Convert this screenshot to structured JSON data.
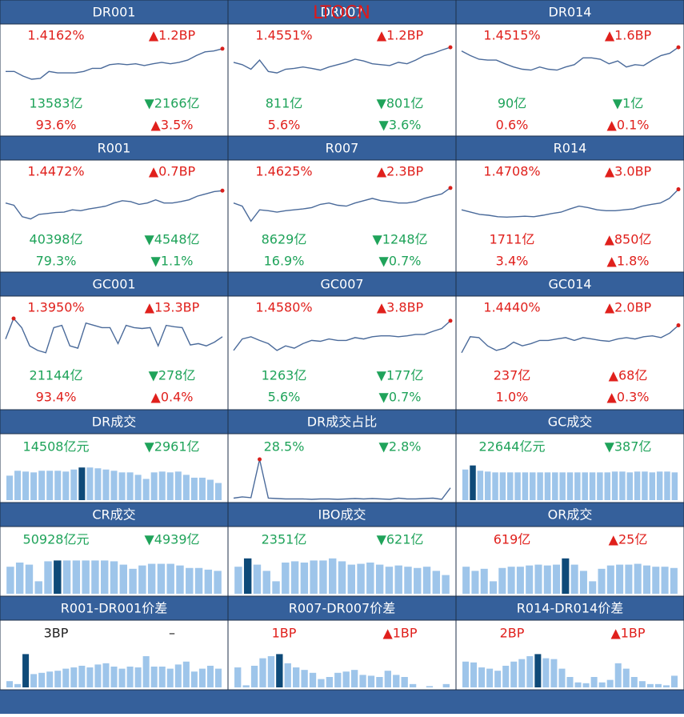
{
  "overlay_text": "LTOCN",
  "chart_data": [
    {
      "type": "line",
      "title": "DR001",
      "ylim": [
        0,
        100
      ],
      "color": "#4a6a9a",
      "marker_color": "#d9201c",
      "highlight_index": 25,
      "values": [
        45,
        45,
        35,
        28,
        30,
        45,
        42,
        42,
        42,
        45,
        52,
        52,
        60,
        62,
        60,
        62,
        58,
        62,
        65,
        62,
        65,
        70,
        80,
        88,
        90,
        95
      ],
      "stats": [
        {
          "text": "1.4162%",
          "color": "#e0201c"
        },
        {
          "text": "▲1.2BP",
          "color": "#e0201c"
        },
        {
          "text": "13583亿",
          "color": "#1fa35a"
        },
        {
          "text": "▼2166亿",
          "color": "#1fa35a"
        },
        {
          "text": "93.6%",
          "color": "#e0201c"
        },
        {
          "text": "▲3.5%",
          "color": "#e0201c"
        }
      ]
    },
    {
      "type": "line",
      "title": "DR007",
      "ylim": [
        0,
        100
      ],
      "color": "#4a6a9a",
      "marker_color": "#d9201c",
      "highlight_index": 25,
      "values": [
        65,
        60,
        50,
        70,
        45,
        42,
        50,
        52,
        55,
        52,
        48,
        55,
        60,
        65,
        72,
        68,
        62,
        60,
        58,
        65,
        62,
        70,
        80,
        85,
        92,
        98
      ],
      "stats": [
        {
          "text": "1.4551%",
          "color": "#e0201c"
        },
        {
          "text": "▲1.2BP",
          "color": "#e0201c"
        },
        {
          "text": "811亿",
          "color": "#1fa35a"
        },
        {
          "text": "▼801亿",
          "color": "#1fa35a"
        },
        {
          "text": "5.6%",
          "color": "#e0201c"
        },
        {
          "text": "▼3.6%",
          "color": "#1fa35a"
        }
      ]
    },
    {
      "type": "line",
      "title": "DR014",
      "ylim": [
        0,
        100
      ],
      "color": "#4a6a9a",
      "marker_color": "#d9201c",
      "highlight_index": 25,
      "values": [
        90,
        80,
        72,
        70,
        70,
        62,
        55,
        50,
        48,
        55,
        50,
        48,
        55,
        60,
        75,
        75,
        72,
        62,
        68,
        55,
        60,
        58,
        70,
        80,
        85,
        98
      ],
      "stats": [
        {
          "text": "1.4515%",
          "color": "#e0201c"
        },
        {
          "text": "▲1.6BP",
          "color": "#e0201c"
        },
        {
          "text": "90亿",
          "color": "#1fa35a"
        },
        {
          "text": "▼1亿",
          "color": "#1fa35a"
        },
        {
          "text": "0.6%",
          "color": "#e0201c"
        },
        {
          "text": "▲0.1%",
          "color": "#e0201c"
        }
      ]
    },
    {
      "type": "line",
      "title": "R001",
      "ylim": [
        0,
        100
      ],
      "color": "#4a6a9a",
      "marker_color": "#d9201c",
      "highlight_index": 26,
      "values": [
        55,
        50,
        25,
        20,
        30,
        32,
        34,
        35,
        40,
        38,
        42,
        45,
        48,
        55,
        60,
        58,
        52,
        55,
        62,
        55,
        55,
        58,
        62,
        70,
        75,
        80,
        82
      ],
      "stats": [
        {
          "text": "1.4472%",
          "color": "#e0201c"
        },
        {
          "text": "▲0.7BP",
          "color": "#e0201c"
        },
        {
          "text": "40398亿",
          "color": "#1fa35a"
        },
        {
          "text": "▼4548亿",
          "color": "#1fa35a"
        },
        {
          "text": "79.3%",
          "color": "#1fa35a"
        },
        {
          "text": "▼1.1%",
          "color": "#1fa35a"
        }
      ]
    },
    {
      "type": "line",
      "title": "R007",
      "ylim": [
        0,
        100
      ],
      "color": "#4a6a9a",
      "marker_color": "#d9201c",
      "highlight_index": 25,
      "values": [
        55,
        48,
        15,
        40,
        38,
        35,
        38,
        40,
        42,
        45,
        52,
        55,
        50,
        48,
        55,
        60,
        65,
        60,
        58,
        55,
        55,
        58,
        65,
        70,
        75,
        88
      ],
      "stats": [
        {
          "text": "1.4625%",
          "color": "#e0201c"
        },
        {
          "text": "▲2.3BP",
          "color": "#e0201c"
        },
        {
          "text": "8629亿",
          "color": "#1fa35a"
        },
        {
          "text": "▼1248亿",
          "color": "#1fa35a"
        },
        {
          "text": "16.9%",
          "color": "#1fa35a"
        },
        {
          "text": "▼0.7%",
          "color": "#1fa35a"
        }
      ]
    },
    {
      "type": "line",
      "title": "R014",
      "ylim": [
        0,
        100
      ],
      "color": "#4a6a9a",
      "marker_color": "#d9201c",
      "highlight_index": 24,
      "values": [
        40,
        35,
        30,
        28,
        25,
        24,
        25,
        26,
        25,
        28,
        32,
        35,
        42,
        48,
        45,
        40,
        38,
        38,
        40,
        42,
        48,
        52,
        55,
        65,
        85
      ],
      "stats": [
        {
          "text": "1.4708%",
          "color": "#e0201c"
        },
        {
          "text": "▲3.0BP",
          "color": "#e0201c"
        },
        {
          "text": "1711亿",
          "color": "#e0201c"
        },
        {
          "text": "▲850亿",
          "color": "#e0201c"
        },
        {
          "text": "3.4%",
          "color": "#e0201c"
        },
        {
          "text": "▲1.8%",
          "color": "#e0201c"
        }
      ]
    },
    {
      "type": "line",
      "title": "GC001",
      "ylim": [
        0,
        100
      ],
      "color": "#4a6a9a",
      "marker_color": "#d9201c",
      "highlight_index": 1,
      "values": [
        55,
        100,
        80,
        40,
        30,
        25,
        80,
        85,
        40,
        35,
        90,
        85,
        80,
        80,
        45,
        85,
        80,
        78,
        80,
        40,
        85,
        82,
        80,
        42,
        45,
        40,
        48,
        60
      ],
      "stats": [
        {
          "text": "1.3950%",
          "color": "#e0201c"
        },
        {
          "text": "▲13.3BP",
          "color": "#e0201c"
        },
        {
          "text": "21144亿",
          "color": "#1fa35a"
        },
        {
          "text": "▼278亿",
          "color": "#1fa35a"
        },
        {
          "text": "93.4%",
          "color": "#e0201c"
        },
        {
          "text": "▲0.4%",
          "color": "#e0201c"
        }
      ]
    },
    {
      "type": "line",
      "title": "GC007",
      "ylim": [
        0,
        100
      ],
      "color": "#4a6a9a",
      "marker_color": "#d9201c",
      "highlight_index": 25,
      "values": [
        30,
        55,
        60,
        52,
        45,
        30,
        40,
        35,
        45,
        52,
        50,
        55,
        52,
        52,
        58,
        55,
        60,
        62,
        62,
        60,
        62,
        65,
        65,
        72,
        78,
        95
      ],
      "stats": [
        {
          "text": "1.4580%",
          "color": "#e0201c"
        },
        {
          "text": "▲3.8BP",
          "color": "#e0201c"
        },
        {
          "text": "1263亿",
          "color": "#1fa35a"
        },
        {
          "text": "▼177亿",
          "color": "#1fa35a"
        },
        {
          "text": "5.6%",
          "color": "#1fa35a"
        },
        {
          "text": "▼0.7%",
          "color": "#1fa35a"
        }
      ]
    },
    {
      "type": "line",
      "title": "GC014",
      "ylim": [
        0,
        100
      ],
      "color": "#4a6a9a",
      "marker_color": "#d9201c",
      "highlight_index": 25,
      "values": [
        25,
        60,
        58,
        40,
        30,
        35,
        48,
        40,
        45,
        52,
        52,
        55,
        58,
        52,
        58,
        55,
        52,
        50,
        55,
        58,
        55,
        60,
        62,
        58,
        68,
        85
      ],
      "stats": [
        {
          "text": "1.4440%",
          "color": "#e0201c"
        },
        {
          "text": "▲2.0BP",
          "color": "#e0201c"
        },
        {
          "text": "237亿",
          "color": "#e0201c"
        },
        {
          "text": "▲68亿",
          "color": "#e0201c"
        },
        {
          "text": "1.0%",
          "color": "#e0201c"
        },
        {
          "text": "▲0.3%",
          "color": "#e0201c"
        }
      ]
    },
    {
      "type": "bar",
      "title": "DR成交",
      "ylim": [
        0,
        100
      ],
      "color": "#9ec5ea",
      "highlight_color": "#0e4a78",
      "highlight_index": 9,
      "values": [
        60,
        72,
        70,
        68,
        72,
        72,
        72,
        70,
        75,
        80,
        80,
        78,
        75,
        72,
        68,
        68,
        62,
        52,
        68,
        70,
        68,
        70,
        62,
        55,
        55,
        50,
        42
      ],
      "stats": [
        {
          "text": "14508亿元",
          "color": "#1fa35a"
        },
        {
          "text": "▼2961亿",
          "color": "#1fa35a"
        }
      ]
    },
    {
      "type": "line",
      "title": "DR成交占比",
      "ylim": [
        0,
        100
      ],
      "color": "#4a6a9a",
      "marker_color": "#d9201c",
      "highlight_index": 3,
      "values": [
        5,
        8,
        6,
        100,
        5,
        4,
        3,
        3,
        3,
        2,
        3,
        3,
        2,
        3,
        4,
        3,
        4,
        3,
        2,
        5,
        3,
        3,
        4,
        5,
        2,
        30
      ],
      "stats": [
        {
          "text": "28.5%",
          "color": "#1fa35a"
        },
        {
          "text": "▼2.8%",
          "color": "#1fa35a"
        }
      ]
    },
    {
      "type": "bar",
      "title": "GC成交",
      "ylim": [
        0,
        100
      ],
      "color": "#9ec5ea",
      "highlight_color": "#0e4a78",
      "highlight_index": 1,
      "values": [
        75,
        85,
        72,
        70,
        68,
        68,
        68,
        68,
        68,
        68,
        68,
        68,
        68,
        68,
        68,
        68,
        68,
        68,
        68,
        68,
        70,
        70,
        68,
        70,
        70,
        68,
        70,
        70,
        68
      ],
      "stats": [
        {
          "text": "22644亿元",
          "color": "#1fa35a"
        },
        {
          "text": "▼387亿",
          "color": "#1fa35a"
        }
      ]
    },
    {
      "type": "bar",
      "title": "CR成交",
      "ylim": [
        0,
        100
      ],
      "color": "#9ec5ea",
      "highlight_color": "#0e4a78",
      "highlight_index": 5,
      "values": [
        65,
        75,
        70,
        30,
        78,
        80,
        80,
        80,
        80,
        80,
        80,
        78,
        70,
        60,
        68,
        72,
        72,
        72,
        68,
        62,
        62,
        58,
        55
      ],
      "stats": [
        {
          "text": "50928亿元",
          "color": "#1fa35a"
        },
        {
          "text": "▼4939亿",
          "color": "#1fa35a"
        }
      ]
    },
    {
      "type": "bar",
      "title": "IBO成交",
      "ylim": [
        0,
        100
      ],
      "color": "#9ec5ea",
      "highlight_color": "#0e4a78",
      "highlight_index": 1,
      "values": [
        65,
        85,
        70,
        55,
        30,
        75,
        78,
        75,
        80,
        80,
        85,
        78,
        70,
        72,
        75,
        70,
        65,
        68,
        65,
        62,
        65,
        55,
        45
      ],
      "stats": [
        {
          "text": "2351亿",
          "color": "#1fa35a"
        },
        {
          "text": "▼621亿",
          "color": "#1fa35a"
        }
      ]
    },
    {
      "type": "bar",
      "title": "OR成交",
      "ylim": [
        0,
        100
      ],
      "color": "#9ec5ea",
      "highlight_color": "#0e4a78",
      "highlight_index": 11,
      "values": [
        65,
        55,
        60,
        30,
        62,
        65,
        65,
        68,
        70,
        68,
        70,
        85,
        70,
        55,
        30,
        60,
        68,
        70,
        70,
        72,
        68,
        65,
        65,
        62
      ],
      "stats": [
        {
          "text": "619亿",
          "color": "#e0201c"
        },
        {
          "text": "▲25亿",
          "color": "#e0201c"
        }
      ]
    },
    {
      "type": "bar",
      "title": "R001-DR001价差",
      "ylim": [
        0,
        100
      ],
      "color": "#9ec5ea",
      "highlight_color": "#0e4a78",
      "highlight_index": 2,
      "values": [
        15,
        8,
        80,
        32,
        35,
        38,
        40,
        45,
        48,
        52,
        48,
        55,
        58,
        50,
        45,
        50,
        48,
        75,
        50,
        50,
        45,
        55,
        62,
        38,
        45,
        52,
        45
      ],
      "stats": [
        {
          "text": "3BP",
          "color": "#222222"
        },
        {
          "text": "–",
          "color": "#222222"
        }
      ]
    },
    {
      "type": "bar",
      "title": "R007-DR007价差",
      "ylim": [
        0,
        100
      ],
      "color": "#9ec5ea",
      "highlight_color": "#0e4a78",
      "highlight_index": 5,
      "values": [
        48,
        5,
        52,
        70,
        75,
        80,
        58,
        48,
        42,
        35,
        20,
        25,
        35,
        38,
        42,
        30,
        28,
        25,
        40,
        30,
        25,
        8,
        0,
        3,
        0,
        8
      ],
      "stats": [
        {
          "text": "1BP",
          "color": "#e0201c"
        },
        {
          "text": "▲1BP",
          "color": "#e0201c"
        }
      ]
    },
    {
      "type": "bar",
      "title": "R014-DR014价差",
      "ylim": [
        0,
        100
      ],
      "color": "#9ec5ea",
      "highlight_color": "#0e4a78",
      "highlight_index": 9,
      "values": [
        62,
        60,
        48,
        45,
        40,
        52,
        62,
        68,
        75,
        80,
        70,
        68,
        45,
        25,
        12,
        10,
        25,
        12,
        18,
        58,
        45,
        25,
        15,
        8,
        8,
        5,
        28
      ],
      "stats": [
        {
          "text": "2BP",
          "color": "#e0201c"
        },
        {
          "text": "▲1BP",
          "color": "#e0201c"
        }
      ]
    }
  ]
}
